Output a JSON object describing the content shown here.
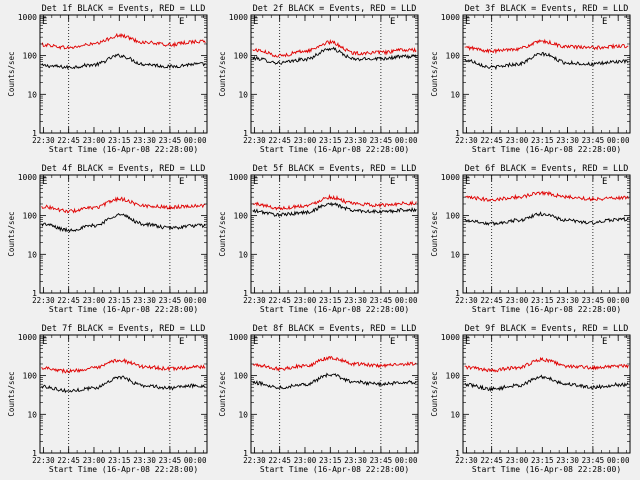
{
  "colors": {
    "background": "#f0f0f0",
    "events": "#000000",
    "lld": "#e00000",
    "axis": "#000000"
  },
  "chart_data": [
    {
      "type": "line",
      "title": "Det 1f BLACK = Events, RED = LLD",
      "xlabel": "Start Time (16-Apr-08 22:28:00)",
      "ylabel": "Counts/sec",
      "xticks": [
        "22:30",
        "22:45",
        "23:00",
        "23:15",
        "23:30",
        "23:45",
        "00:00"
      ],
      "yticks": [
        "1",
        "10",
        "100",
        "1000"
      ],
      "yscale": "log",
      "ylim": [
        1,
        1000
      ],
      "corner_marks": [
        "E",
        "E"
      ],
      "series": [
        {
          "name": "BLACK = Events",
          "color": "#000000",
          "x": [
            "22:30",
            "22:45",
            "23:00",
            "23:15",
            "23:30",
            "23:45",
            "00:00"
          ],
          "values": [
            55,
            50,
            58,
            100,
            60,
            52,
            60
          ]
        },
        {
          "name": "RED = LLD",
          "color": "#e00000",
          "x": [
            "22:30",
            "22:45",
            "23:00",
            "23:15",
            "23:30",
            "23:45",
            "00:00"
          ],
          "values": [
            190,
            160,
            200,
            330,
            220,
            190,
            230
          ]
        }
      ]
    },
    {
      "type": "line",
      "title": "Det 2f BLACK = Events, RED = LLD",
      "xlabel": "Start Time (16-Apr-08 22:28:00)",
      "ylabel": "Counts/sec",
      "xticks": [
        "22:30",
        "22:45",
        "23:00",
        "23:15",
        "23:30",
        "23:45",
        "00:00"
      ],
      "yticks": [
        "1",
        "10",
        "100",
        "1000"
      ],
      "yscale": "log",
      "ylim": [
        1,
        1000
      ],
      "corner_marks": [
        "E",
        "E"
      ],
      "series": [
        {
          "name": "BLACK = Events",
          "color": "#000000",
          "x": [
            "22:30",
            "22:45",
            "23:00",
            "23:15",
            "23:30",
            "23:45",
            "00:00"
          ],
          "values": [
            85,
            65,
            80,
            150,
            80,
            85,
            95
          ]
        },
        {
          "name": "RED = LLD",
          "color": "#e00000",
          "x": [
            "22:30",
            "22:45",
            "23:00",
            "23:15",
            "23:30",
            "23:45",
            "00:00"
          ],
          "values": [
            140,
            100,
            130,
            220,
            115,
            120,
            140
          ]
        }
      ]
    },
    {
      "type": "line",
      "title": "Det 3f BLACK = Events, RED = LLD",
      "xlabel": "Start Time (16-Apr-08 22:28:00)",
      "ylabel": "Counts/sec",
      "xticks": [
        "22:30",
        "22:45",
        "23:00",
        "23:15",
        "23:30",
        "23:45",
        "00:00"
      ],
      "yticks": [
        "1",
        "10",
        "100",
        "1000"
      ],
      "yscale": "log",
      "ylim": [
        1,
        1000
      ],
      "corner_marks": [
        "E",
        "E"
      ],
      "series": [
        {
          "name": "BLACK = Events",
          "color": "#000000",
          "x": [
            "22:30",
            "22:45",
            "23:00",
            "23:15",
            "23:30",
            "23:45",
            "00:00"
          ],
          "values": [
            75,
            50,
            60,
            110,
            65,
            60,
            70
          ]
        },
        {
          "name": "RED = LLD",
          "color": "#e00000",
          "x": [
            "22:30",
            "22:45",
            "23:00",
            "23:15",
            "23:30",
            "23:45",
            "00:00"
          ],
          "values": [
            160,
            130,
            150,
            230,
            170,
            160,
            175
          ]
        }
      ]
    },
    {
      "type": "line",
      "title": "Det 4f BLACK = Events, RED = LLD",
      "xlabel": "Start Time (16-Apr-08 22:28:00)",
      "ylabel": "Counts/sec",
      "xticks": [
        "22:30",
        "22:45",
        "23:00",
        "23:15",
        "23:30",
        "23:45",
        "00:00"
      ],
      "yticks": [
        "1",
        "10",
        "100",
        "1000"
      ],
      "yscale": "log",
      "ylim": [
        1,
        1000
      ],
      "corner_marks": [
        "E",
        "E"
      ],
      "series": [
        {
          "name": "BLACK = Events",
          "color": "#000000",
          "x": [
            "22:30",
            "22:45",
            "23:00",
            "23:15",
            "23:30",
            "23:45",
            "00:00"
          ],
          "values": [
            60,
            42,
            55,
            105,
            60,
            48,
            55
          ]
        },
        {
          "name": "RED = LLD",
          "color": "#e00000",
          "x": [
            "22:30",
            "22:45",
            "23:00",
            "23:15",
            "23:30",
            "23:45",
            "00:00"
          ],
          "values": [
            170,
            130,
            160,
            270,
            180,
            165,
            180
          ]
        }
      ]
    },
    {
      "type": "line",
      "title": "Det 5f BLACK = Events, RED = LLD",
      "xlabel": "Start Time (16-Apr-08 22:28:00)",
      "ylabel": "Counts/sec",
      "xticks": [
        "22:30",
        "22:45",
        "23:00",
        "23:15",
        "23:30",
        "23:45",
        "00:00"
      ],
      "yticks": [
        "1",
        "10",
        "100",
        "1000"
      ],
      "yscale": "log",
      "ylim": [
        1,
        1000
      ],
      "corner_marks": [
        "E",
        "E"
      ],
      "series": [
        {
          "name": "BLACK = Events",
          "color": "#000000",
          "x": [
            "22:30",
            "22:45",
            "23:00",
            "23:15",
            "23:30",
            "23:45",
            "00:00"
          ],
          "values": [
            130,
            105,
            120,
            200,
            135,
            125,
            140
          ]
        },
        {
          "name": "RED = LLD",
          "color": "#e00000",
          "x": [
            "22:30",
            "22:45",
            "23:00",
            "23:15",
            "23:30",
            "23:45",
            "00:00"
          ],
          "values": [
            200,
            155,
            180,
            300,
            200,
            185,
            210
          ]
        }
      ]
    },
    {
      "type": "line",
      "title": "Det 6f BLACK = Events, RED = LLD",
      "xlabel": "Start Time (16-Apr-08 22:28:00)",
      "ylabel": "Counts/sec",
      "xticks": [
        "22:30",
        "22:45",
        "23:00",
        "23:15",
        "23:30",
        "23:45",
        "00:00"
      ],
      "yticks": [
        "1",
        "10",
        "100",
        "1000"
      ],
      "yscale": "log",
      "ylim": [
        1,
        1000
      ],
      "corner_marks": [
        "E",
        "E"
      ],
      "series": [
        {
          "name": "BLACK = Events",
          "color": "#000000",
          "x": [
            "22:30",
            "22:45",
            "23:00",
            "23:15",
            "23:30",
            "23:45",
            "00:00"
          ],
          "values": [
            75,
            62,
            75,
            110,
            75,
            65,
            80
          ]
        },
        {
          "name": "RED = LLD",
          "color": "#e00000",
          "x": [
            "22:30",
            "22:45",
            "23:00",
            "23:15",
            "23:30",
            "23:45",
            "00:00"
          ],
          "values": [
            290,
            260,
            300,
            390,
            300,
            270,
            290
          ]
        }
      ]
    },
    {
      "type": "line",
      "title": "Det 7f BLACK = Events, RED = LLD",
      "xlabel": "Start Time (16-Apr-08 22:28:00)",
      "ylabel": "Counts/sec",
      "xticks": [
        "22:30",
        "22:45",
        "23:00",
        "23:15",
        "23:30",
        "23:45",
        "00:00"
      ],
      "yticks": [
        "1",
        "10",
        "100",
        "1000"
      ],
      "yscale": "log",
      "ylim": [
        1,
        1000
      ],
      "corner_marks": [
        "E",
        "E"
      ],
      "series": [
        {
          "name": "BLACK = Events",
          "color": "#000000",
          "x": [
            "22:30",
            "22:45",
            "23:00",
            "23:15",
            "23:30",
            "23:45",
            "00:00"
          ],
          "values": [
            52,
            40,
            48,
            90,
            55,
            48,
            55
          ]
        },
        {
          "name": "RED = LLD",
          "color": "#e00000",
          "x": [
            "22:30",
            "22:45",
            "23:00",
            "23:15",
            "23:30",
            "23:45",
            "00:00"
          ],
          "values": [
            160,
            130,
            155,
            250,
            170,
            150,
            165
          ]
        }
      ]
    },
    {
      "type": "line",
      "title": "Det 8f BLACK = Events, RED = LLD",
      "xlabel": "Start Time (16-Apr-08 22:28:00)",
      "ylabel": "Counts/sec",
      "xticks": [
        "22:30",
        "22:45",
        "23:00",
        "23:15",
        "23:30",
        "23:45",
        "00:00"
      ],
      "yticks": [
        "1",
        "10",
        "100",
        "1000"
      ],
      "yscale": "log",
      "ylim": [
        1,
        1000
      ],
      "corner_marks": [
        "E",
        "E"
      ],
      "series": [
        {
          "name": "BLACK = Events",
          "color": "#000000",
          "x": [
            "22:30",
            "22:45",
            "23:00",
            "23:15",
            "23:30",
            "23:45",
            "00:00"
          ],
          "values": [
            65,
            50,
            60,
            105,
            68,
            60,
            68
          ]
        },
        {
          "name": "RED = LLD",
          "color": "#e00000",
          "x": [
            "22:30",
            "22:45",
            "23:00",
            "23:15",
            "23:30",
            "23:45",
            "00:00"
          ],
          "values": [
            190,
            150,
            180,
            290,
            200,
            180,
            200
          ]
        }
      ]
    },
    {
      "type": "line",
      "title": "Det 9f BLACK = Events, RED = LLD",
      "xlabel": "Start Time (16-Apr-08 22:28:00)",
      "ylabel": "Counts/sec",
      "xticks": [
        "22:30",
        "22:45",
        "23:00",
        "23:15",
        "23:30",
        "23:45",
        "00:00"
      ],
      "yticks": [
        "1",
        "10",
        "100",
        "1000"
      ],
      "yscale": "log",
      "ylim": [
        1,
        1000
      ],
      "corner_marks": [
        "E",
        "E"
      ],
      "series": [
        {
          "name": "BLACK = Events",
          "color": "#000000",
          "x": [
            "22:30",
            "22:45",
            "23:00",
            "23:15",
            "23:30",
            "23:45",
            "00:00"
          ],
          "values": [
            58,
            45,
            55,
            92,
            60,
            50,
            58
          ]
        },
        {
          "name": "RED = LLD",
          "color": "#e00000",
          "x": [
            "22:30",
            "22:45",
            "23:00",
            "23:15",
            "23:30",
            "23:45",
            "00:00"
          ],
          "values": [
            165,
            135,
            160,
            260,
            175,
            160,
            175
          ]
        }
      ]
    }
  ]
}
